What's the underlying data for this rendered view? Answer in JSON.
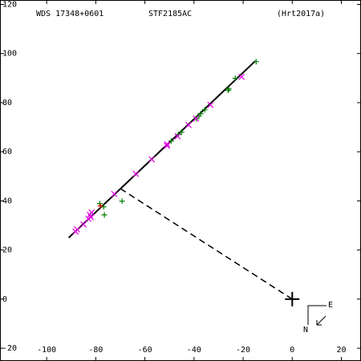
{
  "chart_data": {
    "type": "scatter",
    "title": "WDS 17348+0601",
    "subtitle": "STF2185AC",
    "reference": "(Hrt2017a)",
    "xlim": [
      -119,
      28
    ],
    "ylim": [
      -25.2,
      121.8
    ],
    "xticks": [
      -100,
      -80,
      -60,
      -40,
      -20,
      0,
      20
    ],
    "yticks": [
      -20,
      0,
      20,
      40,
      60,
      80,
      100,
      120
    ],
    "series": [
      {
        "color": "#008000",
        "marker": "plus",
        "x": [
          -14.7,
          -23.2,
          -25.8,
          -26.1,
          -35.6,
          -37.3,
          -38.0,
          -39.0,
          -45.1,
          -46.4,
          -49.3,
          -76.5,
          -69.3,
          -78.4,
          -76.8
        ],
        "values": [
          96.7,
          89.9,
          85.6,
          85.0,
          77.1,
          75.5,
          74.5,
          73.5,
          68.0,
          67.0,
          64.4,
          34.3,
          39.9,
          38.9,
          37.6
        ]
      },
      {
        "color": "#e000e0",
        "marker": "cross",
        "x": [
          -20.6,
          -33.3,
          -39.2,
          -42.2,
          -46.7,
          -51.0,
          -51.0,
          -57.2,
          -63.7,
          -72.5,
          -81.7,
          -82.4,
          -82.0,
          -83.0,
          -85.0,
          -87.6,
          -88.2
        ],
        "values": [
          90.5,
          79.1,
          73.5,
          70.9,
          66.3,
          63.1,
          62.4,
          56.9,
          51.0,
          42.8,
          35.3,
          34.3,
          33.3,
          32.7,
          30.4,
          28.4,
          27.5
        ]
      },
      {
        "color": "#e00000",
        "marker": "plus",
        "x": [
          -78.1
        ],
        "values": [
          37.9
        ]
      }
    ],
    "orbit": {
      "x": [
        -91,
        -15
      ],
      "y": [
        25,
        97
      ]
    },
    "connector": {
      "x": [
        -70,
        0
      ],
      "y": [
        45,
        0
      ]
    },
    "primary": {
      "x": 0,
      "y": 0
    },
    "compass": {
      "east": "E",
      "north": "N"
    }
  }
}
